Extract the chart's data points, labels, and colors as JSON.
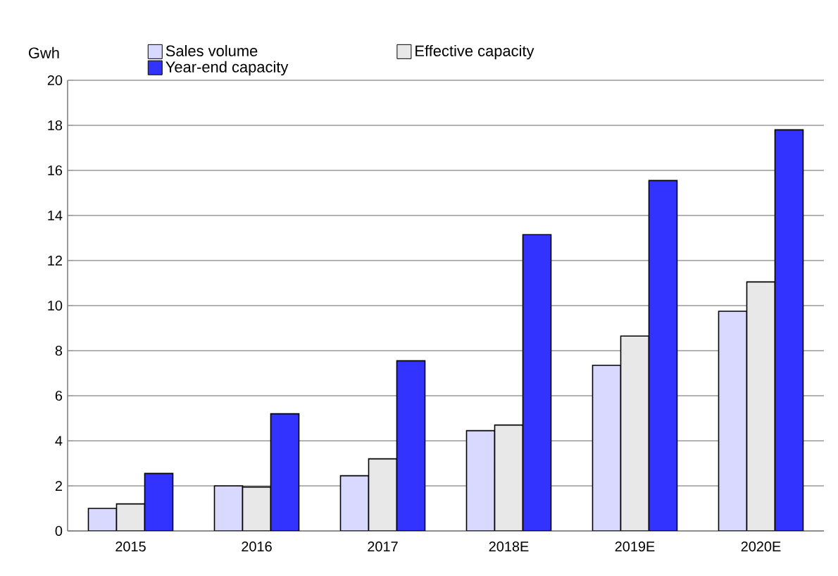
{
  "chart_data": {
    "type": "bar",
    "ylabel": "Gwh",
    "categories": [
      "2015",
      "2016",
      "2017",
      "2018E",
      "2019E",
      "2020E"
    ],
    "series": [
      {
        "name": "Sales volume",
        "color": "#d9d9ff",
        "values": [
          1.0,
          2.0,
          2.45,
          4.45,
          7.35,
          9.75
        ]
      },
      {
        "name": "Effective capacity",
        "color": "#e8e8e8",
        "values": [
          1.2,
          1.95,
          3.2,
          4.7,
          8.65,
          11.05
        ]
      },
      {
        "name": "Year-end capacity",
        "color": "#3333ff",
        "values": [
          2.55,
          5.2,
          7.55,
          13.15,
          15.55,
          17.8
        ]
      }
    ],
    "ylim": [
      0,
      20
    ],
    "yticks": [
      0,
      2,
      4,
      6,
      8,
      10,
      12,
      14,
      16,
      18,
      20
    ],
    "grid": "y",
    "legend": "top left"
  }
}
